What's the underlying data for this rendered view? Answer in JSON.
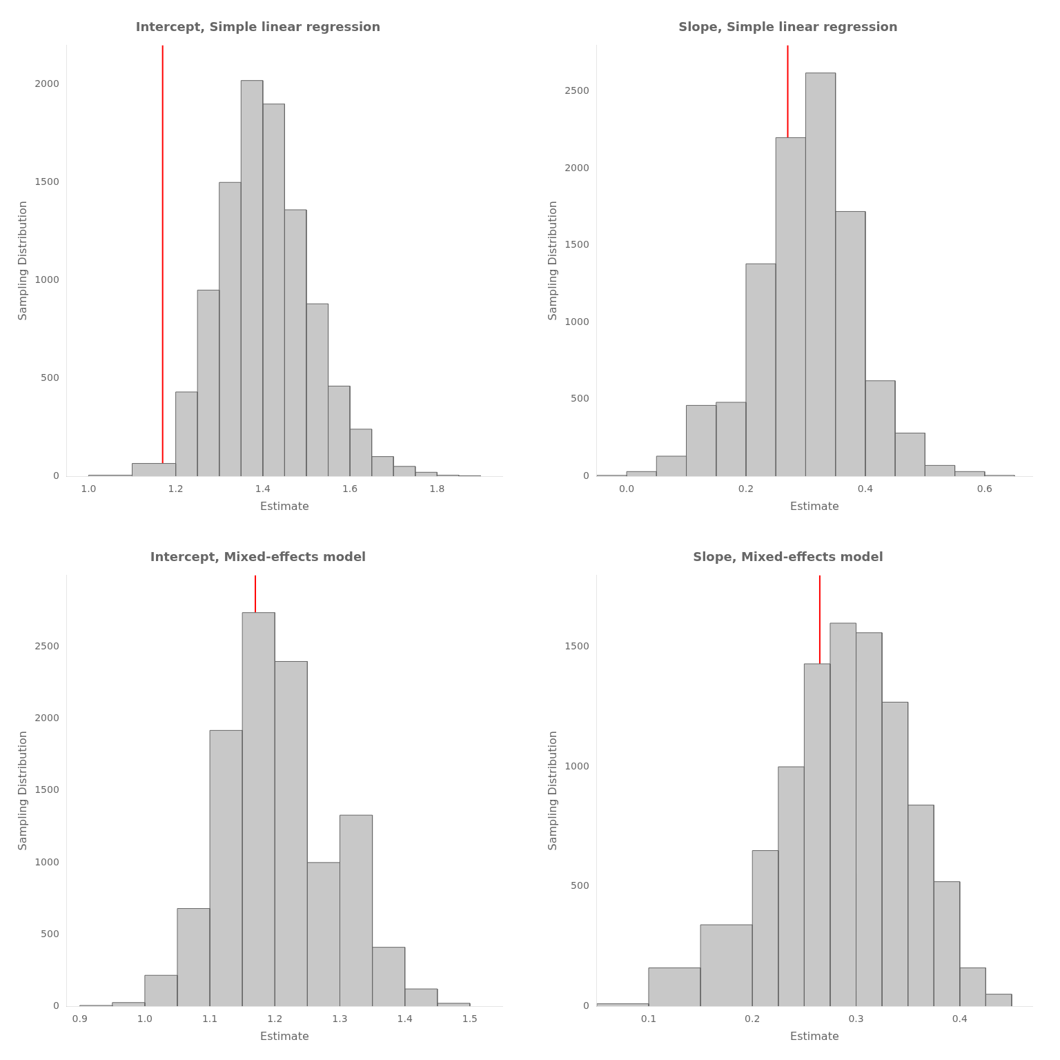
{
  "chart_data": [
    {
      "type": "histogram",
      "title": "Intercept, Simple linear regression",
      "xlabel": "Estimate",
      "ylabel": "Sampling Distribution",
      "bins": [
        1.0,
        1.1,
        1.2,
        1.25,
        1.3,
        1.35,
        1.4,
        1.45,
        1.5,
        1.55,
        1.6,
        1.65,
        1.7,
        1.75,
        1.8,
        1.85,
        1.9
      ],
      "values": [
        5,
        65,
        430,
        950,
        1500,
        2020,
        1900,
        1360,
        880,
        460,
        240,
        100,
        50,
        20,
        5,
        2
      ],
      "color": "#c8c8c8",
      "reference_line": {
        "x": 1.17,
        "color": "#ff0000"
      },
      "xlim": [
        0.95,
        1.95
      ],
      "ylim": [
        0,
        2200
      ],
      "xticks": [
        {
          "value": 1.0,
          "label": "1.0"
        },
        1.2,
        1.4,
        1.6,
        1.8
      ],
      "yticks": [
        0,
        500,
        1000,
        1500,
        2000
      ],
      "grid": false
    },
    {
      "type": "histogram",
      "title": "Slope, Simple linear regression",
      "xlabel": "Estimate",
      "ylabel": "Sampling Distribution",
      "bins": [
        -0.05,
        0.0,
        0.05,
        0.1,
        0.15,
        0.2,
        0.25,
        0.3,
        0.35,
        0.4,
        0.45,
        0.5,
        0.55,
        0.6,
        0.65
      ],
      "values": [
        5,
        30,
        130,
        460,
        480,
        1380,
        2200,
        2620,
        1720,
        620,
        280,
        70,
        30,
        5
      ],
      "color": "#c8c8c8",
      "reference_line": {
        "x": 0.27,
        "color": "#ff0000"
      },
      "xlim": [
        -0.05,
        0.68
      ],
      "ylim": [
        0,
        2800
      ],
      "xticks": [
        {
          "value": 0.0,
          "label": "0.0"
        },
        0.2,
        0.4,
        0.6
      ],
      "yticks": [
        0,
        500,
        1000,
        1500,
        2000,
        2500
      ],
      "grid": false
    },
    {
      "type": "histogram",
      "title": "Intercept, Mixed-effects model",
      "xlabel": "Estimate",
      "ylabel": "Sampling Distribution",
      "bins": [
        0.9,
        0.95,
        1.0,
        1.05,
        1.1,
        1.15,
        1.2,
        1.25,
        1.3,
        1.35,
        1.4,
        1.45,
        1.5
      ],
      "values": [
        5,
        25,
        215,
        680,
        1920,
        2740,
        2400,
        1000,
        1330,
        410,
        120,
        20
      ],
      "color": "#c8c8c8",
      "reference_line": {
        "x": 1.17,
        "color": "#ff0000"
      },
      "xlim": [
        0.88,
        1.55
      ],
      "ylim": [
        0,
        3000
      ],
      "xticks": [
        0.9,
        {
          "value": 1.0,
          "label": "1.0"
        },
        1.1,
        1.2,
        1.3,
        1.4,
        1.5
      ],
      "yticks": [
        0,
        500,
        1000,
        1500,
        2000,
        2500
      ],
      "grid": false
    },
    {
      "type": "histogram",
      "title": "Slope, Mixed-effects model",
      "xlabel": "Estimate",
      "ylabel": "Sampling Distribution",
      "bins": [
        0.05,
        0.1,
        0.15,
        0.2,
        0.225,
        0.25,
        0.275,
        0.3,
        0.325,
        0.35,
        0.375,
        0.4,
        0.425,
        0.45
      ],
      "values": [
        10,
        160,
        340,
        650,
        1000,
        1430,
        1600,
        1560,
        1270,
        840,
        520,
        160,
        50
      ],
      "color": "#c8c8c8",
      "reference_line": {
        "x": 0.265,
        "color": "#ff0000"
      },
      "xlim": [
        0.05,
        0.47
      ],
      "ylim": [
        0,
        1800
      ],
      "xticks": [
        0.1,
        0.2,
        0.3,
        0.4
      ],
      "yticks": [
        0,
        500,
        1000,
        1500
      ],
      "grid": false
    }
  ]
}
